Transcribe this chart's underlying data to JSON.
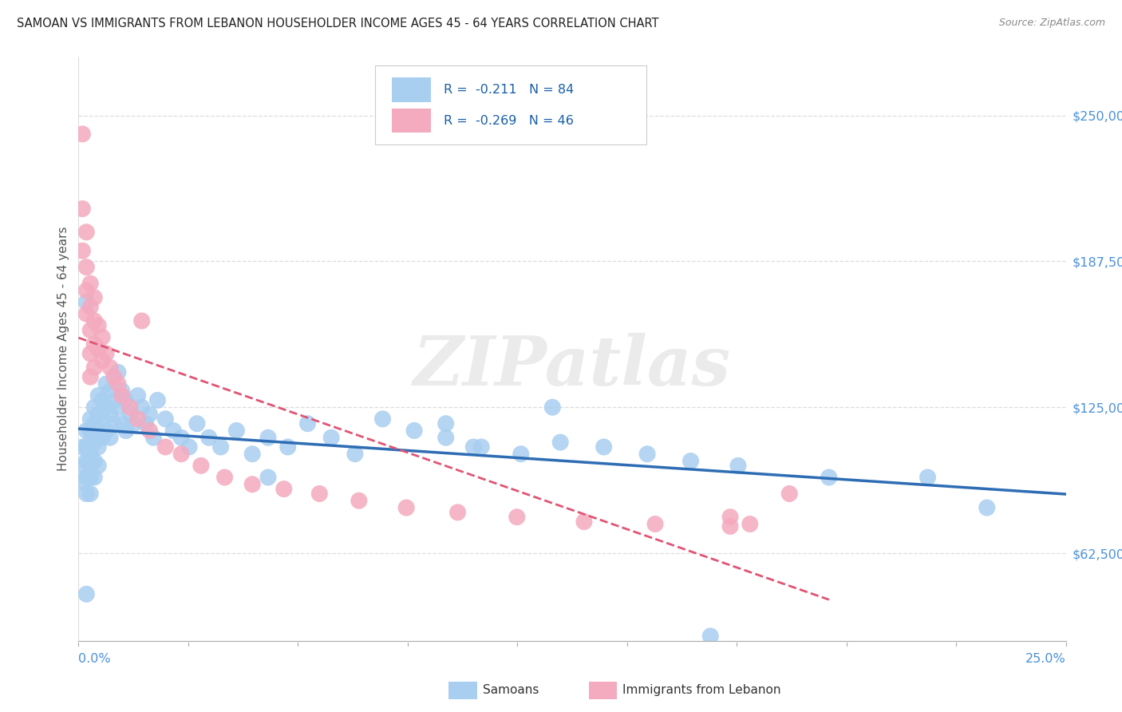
{
  "title": "SAMOAN VS IMMIGRANTS FROM LEBANON HOUSEHOLDER INCOME AGES 45 - 64 YEARS CORRELATION CHART",
  "source": "Source: ZipAtlas.com",
  "ylabel": "Householder Income Ages 45 - 64 years",
  "ytick_values": [
    62500,
    125000,
    187500,
    250000
  ],
  "ytick_labels": [
    "$62,500",
    "$125,000",
    "$187,500",
    "$250,000"
  ],
  "xtick_left_label": "0.0%",
  "xtick_right_label": "25.0%",
  "xmin": 0.0,
  "xmax": 0.25,
  "ymin": 25000,
  "ymax": 275000,
  "color_blue": "#A8CEF0",
  "color_pink": "#F4AABF",
  "color_blue_line": "#2E6DB4",
  "color_pink_line": "#E05575",
  "color_grid": "#DDDDDD",
  "color_ytick": "#4A90D9",
  "legend_text1": "R =  -0.211   N = 84",
  "legend_text2": "R =  -0.269   N = 46",
  "watermark": "ZIPatlas",
  "bottom_legend_samoans": "Samoans",
  "bottom_legend_lebanon": "Immigrants from Lebanon",
  "samoans_x": [
    0.001,
    0.001,
    0.001,
    0.002,
    0.002,
    0.002,
    0.002,
    0.002,
    0.003,
    0.003,
    0.003,
    0.003,
    0.003,
    0.003,
    0.003,
    0.004,
    0.004,
    0.004,
    0.004,
    0.004,
    0.005,
    0.005,
    0.005,
    0.005,
    0.005,
    0.006,
    0.006,
    0.006,
    0.007,
    0.007,
    0.007,
    0.008,
    0.008,
    0.008,
    0.009,
    0.009,
    0.01,
    0.01,
    0.011,
    0.011,
    0.012,
    0.012,
    0.013,
    0.014,
    0.015,
    0.016,
    0.017,
    0.018,
    0.019,
    0.02,
    0.022,
    0.024,
    0.026,
    0.028,
    0.03,
    0.033,
    0.036,
    0.04,
    0.044,
    0.048,
    0.053,
    0.058,
    0.064,
    0.07,
    0.077,
    0.085,
    0.093,
    0.102,
    0.112,
    0.122,
    0.133,
    0.144,
    0.155,
    0.167,
    0.12,
    0.1,
    0.093,
    0.048,
    0.19,
    0.215,
    0.23,
    0.002,
    0.002,
    0.16
  ],
  "samoans_y": [
    108000,
    100000,
    93000,
    115000,
    108000,
    102000,
    95000,
    88000,
    120000,
    115000,
    110000,
    105000,
    100000,
    95000,
    88000,
    125000,
    118000,
    110000,
    102000,
    95000,
    130000,
    122000,
    115000,
    108000,
    100000,
    128000,
    120000,
    112000,
    135000,
    125000,
    115000,
    132000,
    122000,
    112000,
    128000,
    118000,
    140000,
    125000,
    132000,
    118000,
    128000,
    115000,
    122000,
    118000,
    130000,
    125000,
    118000,
    122000,
    112000,
    128000,
    120000,
    115000,
    112000,
    108000,
    118000,
    112000,
    108000,
    115000,
    105000,
    112000,
    108000,
    118000,
    112000,
    105000,
    120000,
    115000,
    112000,
    108000,
    105000,
    110000,
    108000,
    105000,
    102000,
    100000,
    125000,
    108000,
    118000,
    95000,
    95000,
    95000,
    82000,
    170000,
    45000,
    27000
  ],
  "lebanon_x": [
    0.001,
    0.001,
    0.001,
    0.002,
    0.002,
    0.002,
    0.002,
    0.003,
    0.003,
    0.003,
    0.003,
    0.004,
    0.004,
    0.004,
    0.004,
    0.005,
    0.005,
    0.006,
    0.006,
    0.007,
    0.008,
    0.009,
    0.01,
    0.011,
    0.013,
    0.015,
    0.018,
    0.022,
    0.026,
    0.031,
    0.037,
    0.044,
    0.052,
    0.061,
    0.071,
    0.083,
    0.096,
    0.111,
    0.128,
    0.146,
    0.165,
    0.003,
    0.016,
    0.165,
    0.17,
    0.18
  ],
  "lebanon_y": [
    242000,
    210000,
    192000,
    200000,
    185000,
    175000,
    165000,
    178000,
    168000,
    158000,
    148000,
    172000,
    162000,
    152000,
    142000,
    160000,
    150000,
    155000,
    145000,
    148000,
    142000,
    138000,
    135000,
    130000,
    125000,
    120000,
    115000,
    108000,
    105000,
    100000,
    95000,
    92000,
    90000,
    88000,
    85000,
    82000,
    80000,
    78000,
    76000,
    75000,
    74000,
    138000,
    162000,
    78000,
    75000,
    88000
  ]
}
